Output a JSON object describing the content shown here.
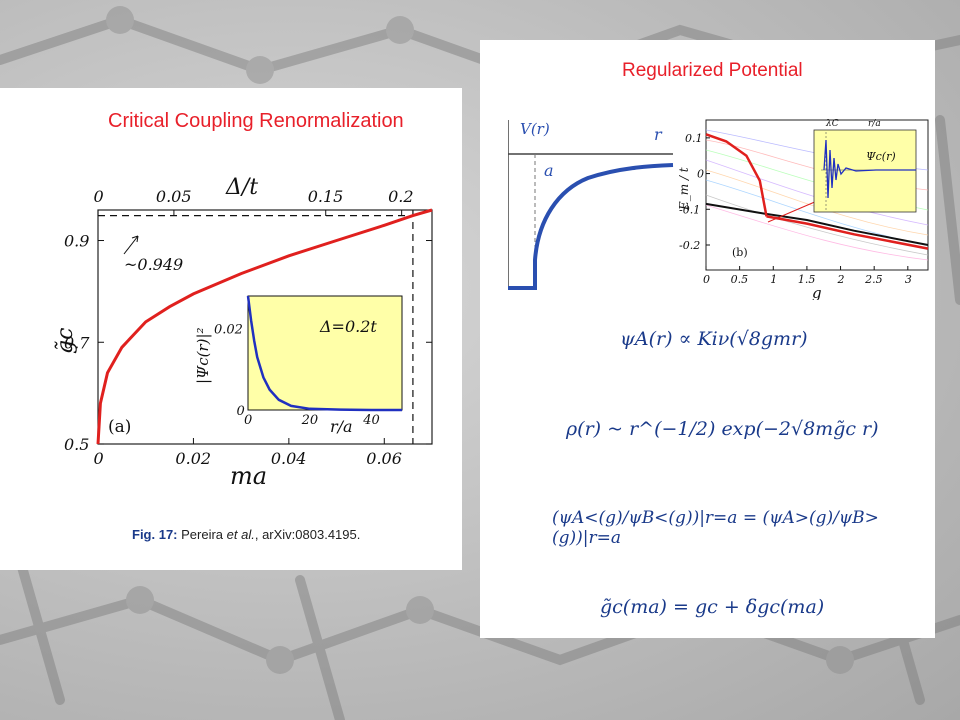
{
  "left": {
    "title": "Critical Coupling Renormalization",
    "caption_fig": "Fig. 17:",
    "caption_authors": " Pereira ",
    "caption_etal": "et al.",
    "caption_rest": ", arXiv:0803.4195.",
    "panel_label": "(a)",
    "annotation": "~0.949",
    "inset_label": "Δ=0.2t",
    "inset_ylabel": "|Ψc(r)|²",
    "inset_xlabel": "r/a",
    "top_axis_label": "Δ/t",
    "bottom_axis_label": "ma",
    "y_axis_label": "g̃c"
  },
  "right": {
    "title": "Regularized Potential",
    "potential_label": "V(r)",
    "r_label": "r",
    "a_label": "a",
    "panel_b_label": "(b)",
    "panel_b_ylabel": "E_m / t",
    "panel_b_xlabel": "g",
    "inset_b_label": "Ψc(r)",
    "inset_b_top": "r/a",
    "lambda_label": "λC",
    "eq1": "ψA(r) ∝ Kiν(√8gmr)",
    "eq2": "ρ(r) ~ r^(−1/2) exp(−2√8mg̃c r)",
    "eq3": "(ψA<(g)/ψB<(g))|r=a = (ψA>(g)/ψB>(g))|r=a",
    "eq4": "g̃c(ma) = gc + δgc(ma)"
  },
  "chart_data": [
    {
      "type": "line",
      "title": "Critical Coupling Renormalization",
      "xlabel": "ma",
      "ylabel": "g̃c",
      "top_xlabel": "Δ/t",
      "xlim": [
        0,
        0.07
      ],
      "ylim": [
        0.5,
        0.96
      ],
      "x_ticks": [
        "0",
        "0.02",
        "0.04",
        "0.06"
      ],
      "top_ticks": [
        "0",
        "0.05",
        "0.15",
        "0.2"
      ],
      "y_ticks": [
        "0.5",
        "0.7",
        "0.9"
      ],
      "series": [
        {
          "color": "#e0201e",
          "x": [
            0,
            0.0005,
            0.002,
            0.005,
            0.01,
            0.015,
            0.02,
            0.03,
            0.04,
            0.05,
            0.06,
            0.066,
            0.07
          ],
          "y": [
            0.5,
            0.58,
            0.64,
            0.69,
            0.74,
            0.77,
            0.795,
            0.835,
            0.87,
            0.9,
            0.93,
            0.949,
            0.96
          ]
        }
      ],
      "reference_lines": {
        "horizontal_y": 0.949,
        "vertical_x": 0.066
      },
      "inset": {
        "type": "line",
        "xlabel": "r/a",
        "ylabel": "|Ψc(r)|²",
        "x_ticks": [
          "0",
          "20",
          "40"
        ],
        "y_ticks": [
          "0",
          "0.02"
        ],
        "xlim": [
          0,
          50
        ],
        "ylim": [
          0,
          0.028
        ],
        "series": [
          {
            "color": "#2030c0",
            "x": [
              0,
              1,
              2,
              3,
              5,
              7,
              10,
              14,
              20,
              30,
              40,
              50
            ],
            "y": [
              0.028,
              0.022,
              0.017,
              0.013,
              0.008,
              0.005,
              0.0025,
              0.001,
              0.0003,
              0.0001,
              0.0,
              0.0
            ]
          }
        ]
      }
    },
    {
      "type": "line",
      "title": "",
      "xlabel": "g",
      "ylabel": "E_m / t",
      "xlim": [
        0,
        3.3
      ],
      "ylim": [
        -0.27,
        0.15
      ],
      "x_ticks": [
        "0",
        "0.5",
        "1",
        "1.5",
        "2",
        "2.5",
        "3"
      ],
      "y_ticks": [
        "0.1",
        "0",
        "-0.1",
        "-0.2"
      ],
      "series": [
        {
          "color": "#e0201e",
          "x": [
            0,
            0.3,
            0.6,
            0.8,
            0.9
          ],
          "y": [
            0.11,
            0.09,
            0.05,
            -0.02,
            -0.12
          ]
        },
        {
          "color": "#111111",
          "x": [
            0,
            0.8,
            1.5,
            2.2,
            3.3
          ],
          "y": [
            -0.085,
            -0.11,
            -0.13,
            -0.16,
            -0.2
          ]
        },
        {
          "color": "#e0201e",
          "x": [
            0.9,
            1.5,
            2.2,
            3.3
          ],
          "y": [
            -0.12,
            -0.14,
            -0.17,
            -0.21
          ]
        }
      ]
    }
  ]
}
